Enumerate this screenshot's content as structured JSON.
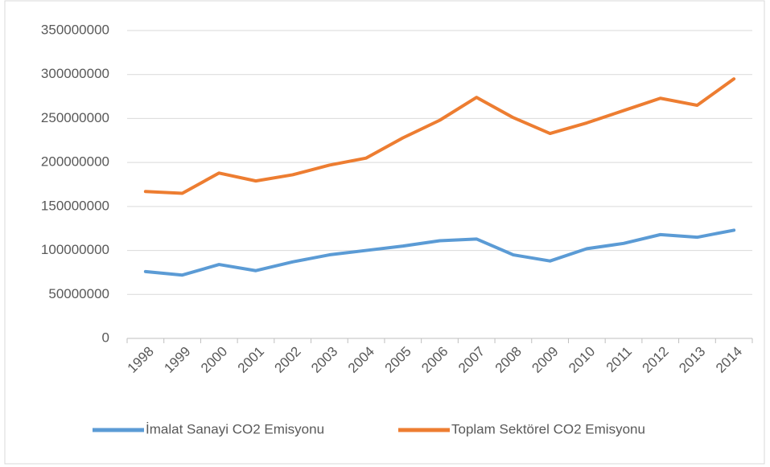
{
  "chart_data": {
    "type": "line",
    "categories": [
      "1998",
      "1999",
      "2000",
      "2001",
      "2002",
      "2003",
      "2004",
      "2005",
      "2006",
      "2007",
      "2008",
      "2009",
      "2010",
      "2011",
      "2012",
      "2013",
      "2014"
    ],
    "series": [
      {
        "name": "İmalat Sanayi CO2 Emisyonu",
        "color": "#5b9bd5",
        "values": [
          76000000,
          72000000,
          84000000,
          77000000,
          87000000,
          95000000,
          100000000,
          105000000,
          111000000,
          113000000,
          95000000,
          88000000,
          102000000,
          108000000,
          118000000,
          115000000,
          123000000
        ]
      },
      {
        "name": "Toplam Sektörel CO2 Emisyonu",
        "color": "#ed7d31",
        "values": [
          167000000,
          165000000,
          188000000,
          179000000,
          186000000,
          197000000,
          205000000,
          228000000,
          248000000,
          274000000,
          251000000,
          233000000,
          245000000,
          259000000,
          273000000,
          265000000,
          295000000
        ]
      }
    ],
    "ylim": [
      0,
      350000000
    ],
    "yticks": [
      0,
      50000000,
      100000000,
      150000000,
      200000000,
      250000000,
      300000000,
      350000000
    ],
    "grid": true,
    "legend": "bottom"
  }
}
